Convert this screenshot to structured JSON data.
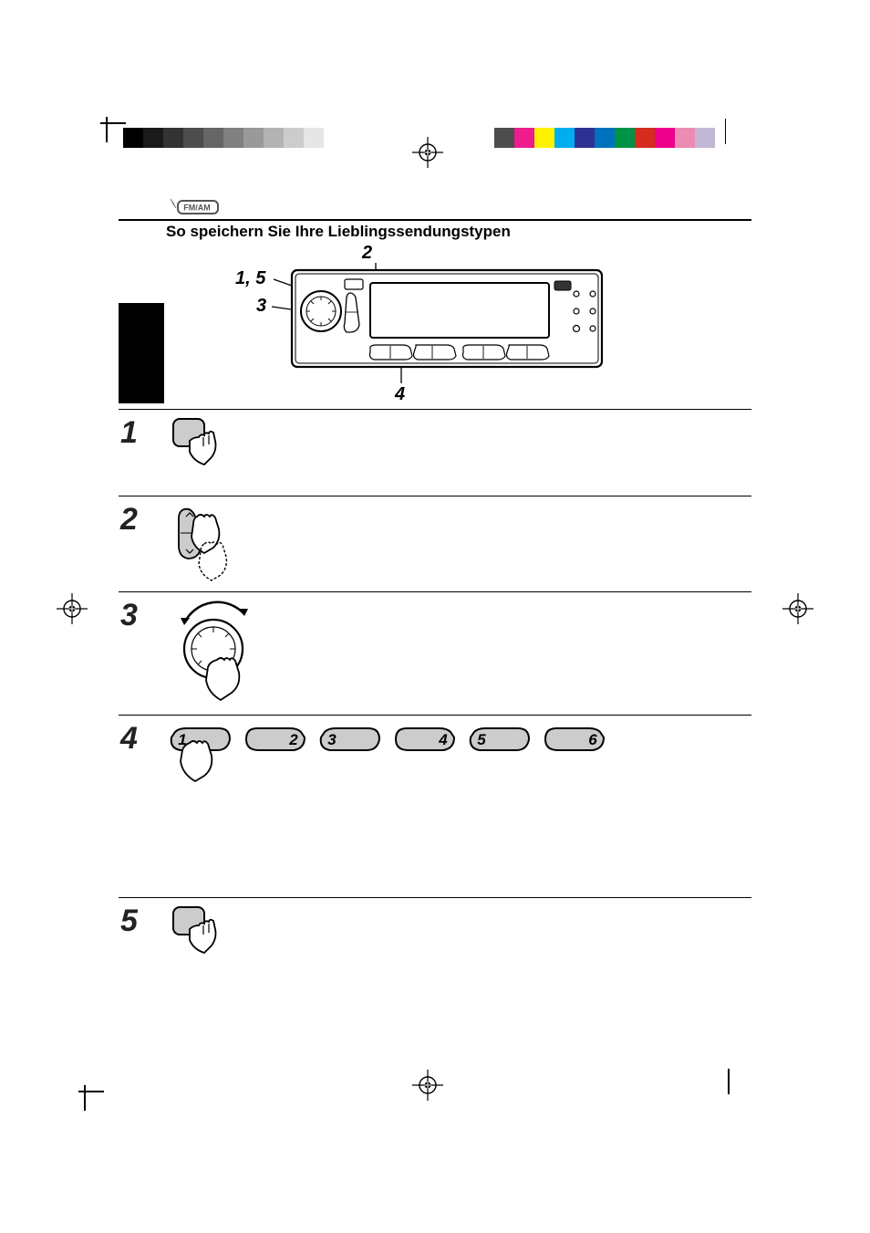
{
  "badge_text": "FM/AM",
  "heading": "So speichern Sie Ihre Lieblingssendungstypen",
  "callouts": {
    "c2": "2",
    "c15": "1, 5",
    "c3": "3",
    "c4": "4"
  },
  "grayscale_swatches": [
    "#000000",
    "#1a1a1a",
    "#333333",
    "#4d4d4d",
    "#666666",
    "#808080",
    "#999999",
    "#b3b3b3",
    "#cccccc",
    "#e6e6e6",
    "#ffffff"
  ],
  "color_swatches": [
    "#c2b8d4",
    "#ec8bb3",
    "#ec008c",
    "#d52c1e",
    "#009245",
    "#0071bc",
    "#2e3192",
    "#00aeef",
    "#fff200",
    "#ed1c8f",
    "#4d4d4d"
  ],
  "steps": [
    {
      "num": "1"
    },
    {
      "num": "2"
    },
    {
      "num": "3"
    },
    {
      "num": "4"
    },
    {
      "num": "5"
    }
  ],
  "preset_numbers": [
    "1",
    "2",
    "3",
    "4",
    "5",
    "6"
  ],
  "styling": {
    "heading_fontsize": 17,
    "stepnum_fontsize": 34,
    "callout_fontsize": 20,
    "rule_color": "#000000",
    "background": "#ffffff",
    "preset_fill": "#cccccc"
  }
}
